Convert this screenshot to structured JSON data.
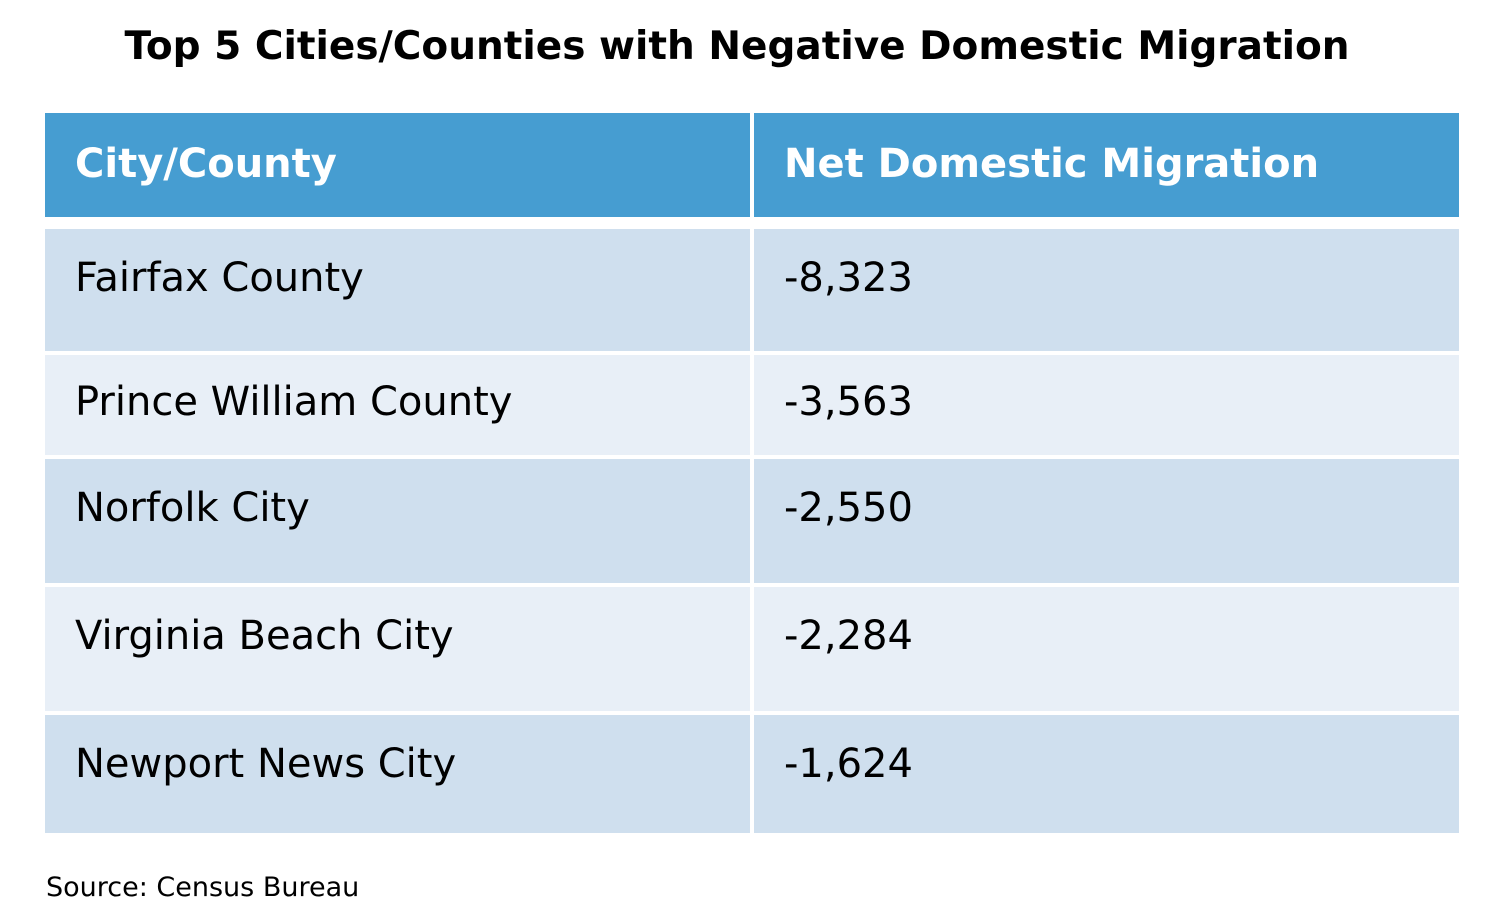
{
  "title": "Top 5 Cities/Counties with Negative Domestic Migration",
  "table": {
    "headers": [
      "City/County",
      "Net Domestic Migration"
    ],
    "rows": [
      {
        "name": "Fairfax County",
        "value": "-8,323"
      },
      {
        "name": "Prince William County",
        "value": "-3,563"
      },
      {
        "name": "Norfolk City",
        "value": "-2,550"
      },
      {
        "name": "Virginia Beach City",
        "value": "-2,284"
      },
      {
        "name": "Newport News City",
        "value": "-1,624"
      }
    ]
  },
  "source": "Source: Census Bureau",
  "colors": {
    "header_bg": "#469dd1",
    "row_dark": "#cfdfee",
    "row_light": "#e8eff7"
  }
}
